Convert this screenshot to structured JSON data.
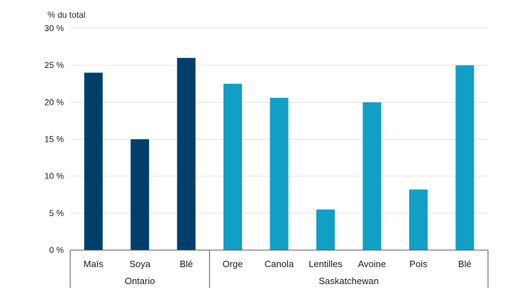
{
  "chart_data": {
    "type": "bar",
    "ylabel": "% du total",
    "ylim": [
      0,
      30
    ],
    "yticks": [
      "0 %",
      "5 %",
      "10 %",
      "15 %",
      "20 %",
      "25 %",
      "30 %"
    ],
    "grid": true,
    "groups": [
      {
        "name": "Ontario",
        "color": "#003f6b",
        "categories": [
          "Maïs",
          "Soya",
          "Blé"
        ],
        "values": [
          24,
          15,
          26
        ]
      },
      {
        "name": "Saskatchewan",
        "color": "#129fc6",
        "categories": [
          "Orge",
          "Canola",
          "Lentilles",
          "Avoine",
          "Pois",
          "Blé"
        ],
        "values": [
          22.5,
          20.6,
          5.5,
          20,
          8.2,
          25
        ]
      }
    ]
  }
}
